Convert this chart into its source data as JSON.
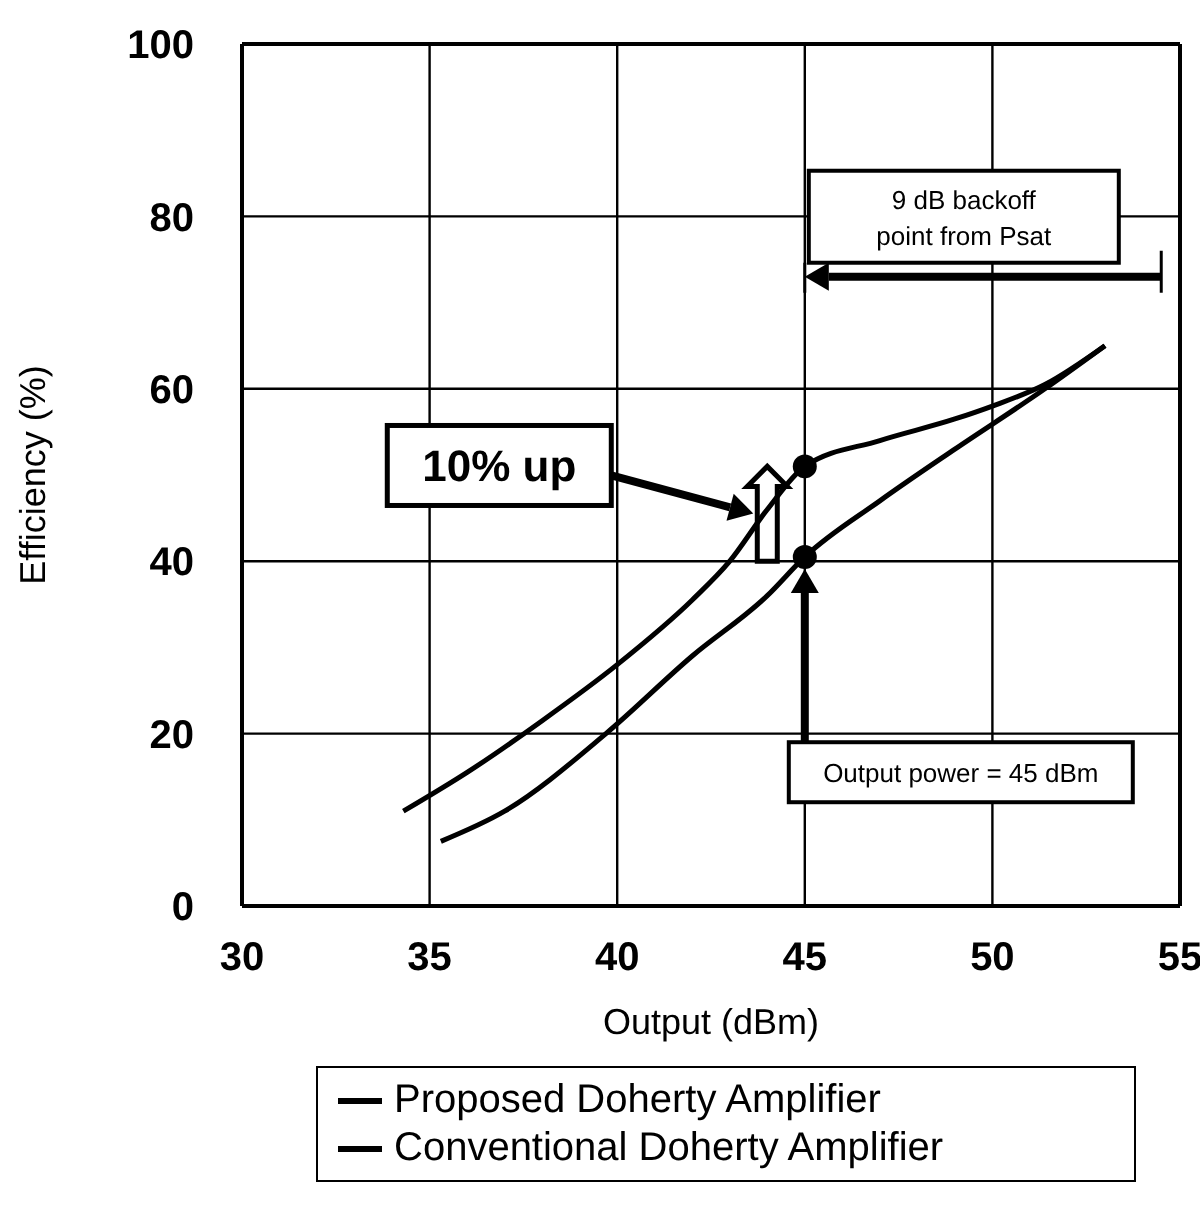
{
  "chart_data": {
    "type": "line",
    "xlabel": "Output (dBm)",
    "ylabel": "Efficiency (%)",
    "xlim": [
      30,
      55
    ],
    "xticks": [
      30,
      35,
      40,
      45,
      50,
      55
    ],
    "ylim": [
      0,
      100
    ],
    "yticks": [
      0,
      20,
      40,
      60,
      80,
      100
    ],
    "grid": true,
    "legend": "bottom",
    "marker": "none",
    "line_style": "solid",
    "series": [
      {
        "name": "Proposed Doherty Amplifier",
        "color": "#000000",
        "x": [
          34.3,
          36,
          38,
          40,
          42,
          43,
          44,
          45,
          47,
          49,
          50,
          51.4,
          53
        ],
        "values": [
          11,
          15.5,
          21.5,
          28,
          35.5,
          40,
          46,
          51,
          54,
          56.5,
          58,
          60.5,
          65
        ]
      },
      {
        "name": "Conventional Doherty Amplifier",
        "color": "#000000",
        "x": [
          35.3,
          37,
          39.7,
          42,
          44,
          45,
          47,
          49,
          51.4,
          53
        ],
        "values": [
          7.5,
          11,
          20,
          29,
          36,
          40.5,
          47,
          53,
          60,
          65
        ]
      },
      {
        "type": "scatter",
        "color": "#000000",
        "marker": "circle",
        "x": [
          45,
          45
        ],
        "values": [
          51,
          40.5
        ]
      }
    ],
    "annotations": [
      "10% up",
      "9 dB backoff\npoint from Psat",
      "Output power = 45 dBm"
    ]
  }
}
